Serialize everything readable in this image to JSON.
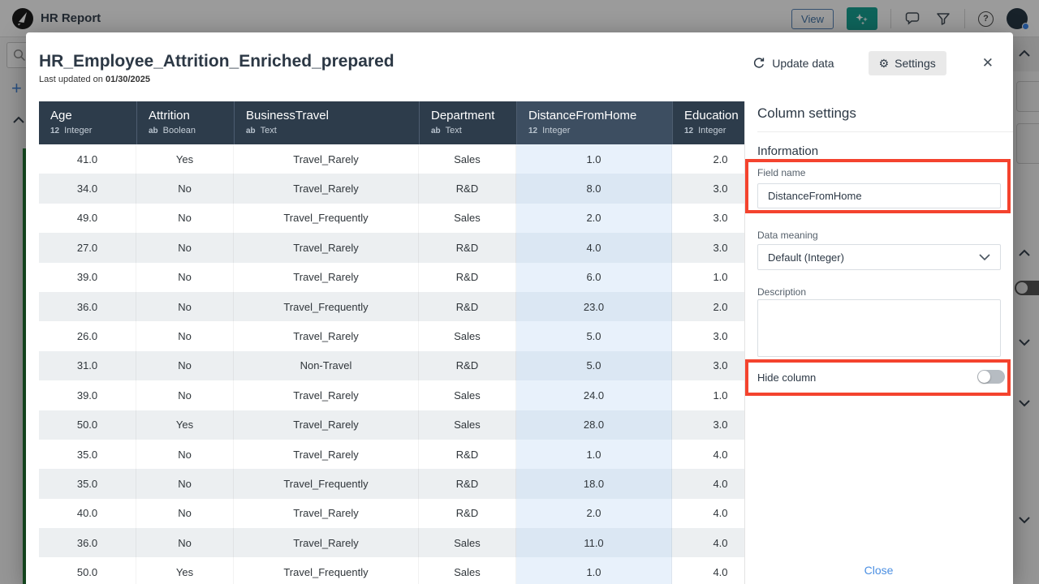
{
  "topbar": {
    "app_title": "HR Report",
    "view_button": "View",
    "icons": [
      "logo-icon",
      "sparkle-icon",
      "chat-icon",
      "filter-icon",
      "help-icon",
      "avatar"
    ]
  },
  "modal": {
    "title": "HR_Employee_Attrition_Enriched_prepared",
    "last_updated_prefix": "Last updated on ",
    "last_updated_date": "01/30/2025",
    "update_data_label": "Update data",
    "settings_label": "Settings",
    "settings_gear_glyph": "⚙",
    "close_glyph": "✕",
    "table": {
      "columns": [
        {
          "name": "Age",
          "type": "Integer",
          "type_icon": "12",
          "selected": false
        },
        {
          "name": "Attrition",
          "type": "Boolean",
          "type_icon": "ab",
          "selected": false
        },
        {
          "name": "BusinessTravel",
          "type": "Text",
          "type_icon": "ab",
          "selected": false
        },
        {
          "name": "Department",
          "type": "Text",
          "type_icon": "ab",
          "selected": false
        },
        {
          "name": "DistanceFromHome",
          "type": "Integer",
          "type_icon": "12",
          "selected": true
        },
        {
          "name": "Education",
          "type": "Integer",
          "type_icon": "12",
          "selected": false
        }
      ],
      "rows": [
        [
          "41.0",
          "Yes",
          "Travel_Rarely",
          "Sales",
          "1.0",
          "2.0"
        ],
        [
          "34.0",
          "No",
          "Travel_Rarely",
          "R&D",
          "8.0",
          "3.0"
        ],
        [
          "49.0",
          "No",
          "Travel_Frequently",
          "Sales",
          "2.0",
          "3.0"
        ],
        [
          "27.0",
          "No",
          "Travel_Rarely",
          "R&D",
          "4.0",
          "3.0"
        ],
        [
          "39.0",
          "No",
          "Travel_Rarely",
          "R&D",
          "6.0",
          "1.0"
        ],
        [
          "36.0",
          "No",
          "Travel_Frequently",
          "R&D",
          "23.0",
          "2.0"
        ],
        [
          "26.0",
          "No",
          "Travel_Rarely",
          "Sales",
          "5.0",
          "3.0"
        ],
        [
          "31.0",
          "No",
          "Non-Travel",
          "R&D",
          "5.0",
          "3.0"
        ],
        [
          "39.0",
          "No",
          "Travel_Rarely",
          "Sales",
          "24.0",
          "1.0"
        ],
        [
          "50.0",
          "Yes",
          "Travel_Rarely",
          "Sales",
          "28.0",
          "3.0"
        ],
        [
          "35.0",
          "No",
          "Travel_Rarely",
          "R&D",
          "1.0",
          "4.0"
        ],
        [
          "35.0",
          "No",
          "Travel_Frequently",
          "R&D",
          "18.0",
          "4.0"
        ],
        [
          "40.0",
          "No",
          "Travel_Rarely",
          "R&D",
          "2.0",
          "4.0"
        ],
        [
          "36.0",
          "No",
          "Travel_Rarely",
          "Sales",
          "11.0",
          "4.0"
        ],
        [
          "50.0",
          "Yes",
          "Travel_Frequently",
          "Sales",
          "1.0",
          "4.0"
        ]
      ]
    },
    "panel": {
      "title": "Column settings",
      "section_information": "Information",
      "field_name_label": "Field name",
      "field_name_value": "DistanceFromHome",
      "data_meaning_label": "Data meaning",
      "data_meaning_value": "Default (Integer)",
      "description_label": "Description",
      "description_value": "",
      "hide_column_label": "Hide column",
      "hide_column_on": false,
      "close_label": "Close"
    }
  },
  "colors": {
    "annotation_red": "#f4432e",
    "table_header_bg": "#2d3c4b",
    "table_header_selected_bg": "#3d4e61",
    "selected_column_light": "#e8f1fb",
    "selected_column_dark": "#dbe7f3",
    "row_stripe": "#eceff1",
    "teal_button": "#0b9e8e",
    "link_blue": "#4b8fe2",
    "green_bar": "#1b7a2e"
  }
}
